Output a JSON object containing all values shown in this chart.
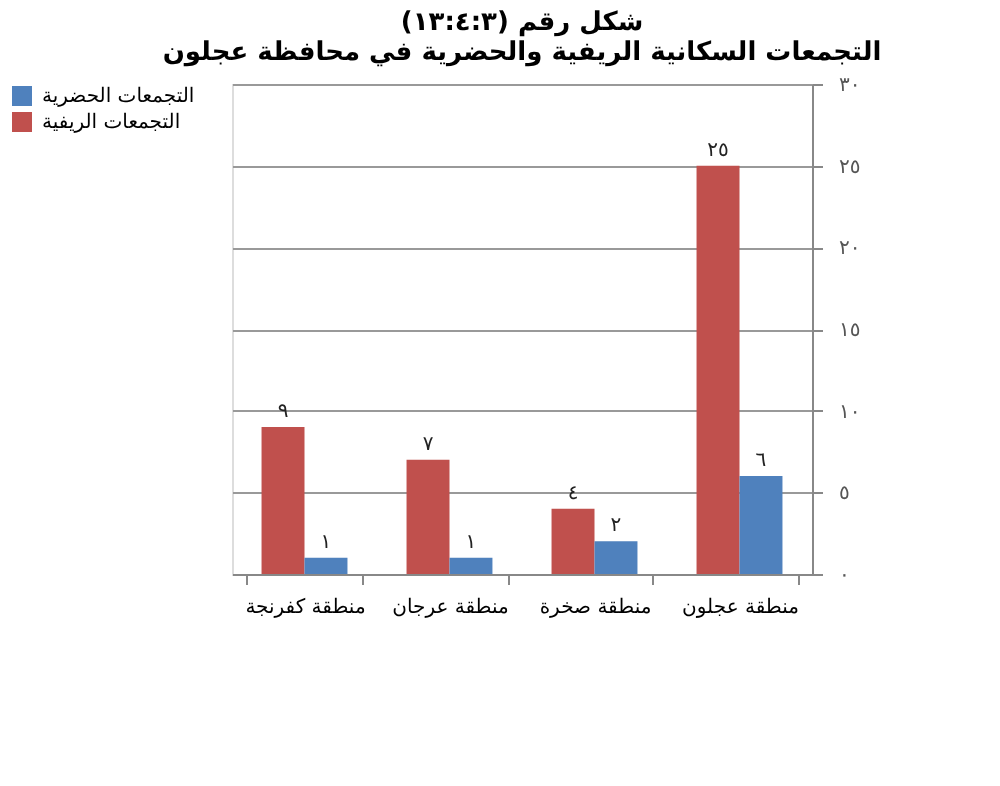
{
  "chart_data": {
    "type": "bar",
    "title": [
      "شكل رقم (١٣:٤:٣)",
      "التجمعات السكانية الريفية والحضرية في محافظة عجلون"
    ],
    "categories": [
      "منطقة كفرنجة",
      "منطقة عرجان",
      "منطقة صخرة",
      "منطقة عجلون"
    ],
    "series": [
      {
        "name": "التجمعات الريفية",
        "color": "#c0504d",
        "values": [
          9,
          7,
          4,
          25
        ],
        "value_labels": [
          "٩",
          "٧",
          "٤",
          "٢٥"
        ]
      },
      {
        "name": "التجمعات الحضرية",
        "color": "#4f81bd",
        "values": [
          1,
          1,
          2,
          6
        ],
        "value_labels": [
          "١",
          "١",
          "٢",
          "٦"
        ]
      }
    ],
    "ylim": [
      0,
      30
    ],
    "yticks": [
      {
        "value": 0,
        "label": "٠"
      },
      {
        "value": 5,
        "label": "٥"
      },
      {
        "value": 10,
        "label": "١٠"
      },
      {
        "value": 15,
        "label": "١٥"
      },
      {
        "value": 20,
        "label": "٢٠"
      },
      {
        "value": 25,
        "label": "٢٥"
      },
      {
        "value": 30,
        "label": "٣٠"
      }
    ],
    "grid": "y",
    "legend": "left"
  }
}
